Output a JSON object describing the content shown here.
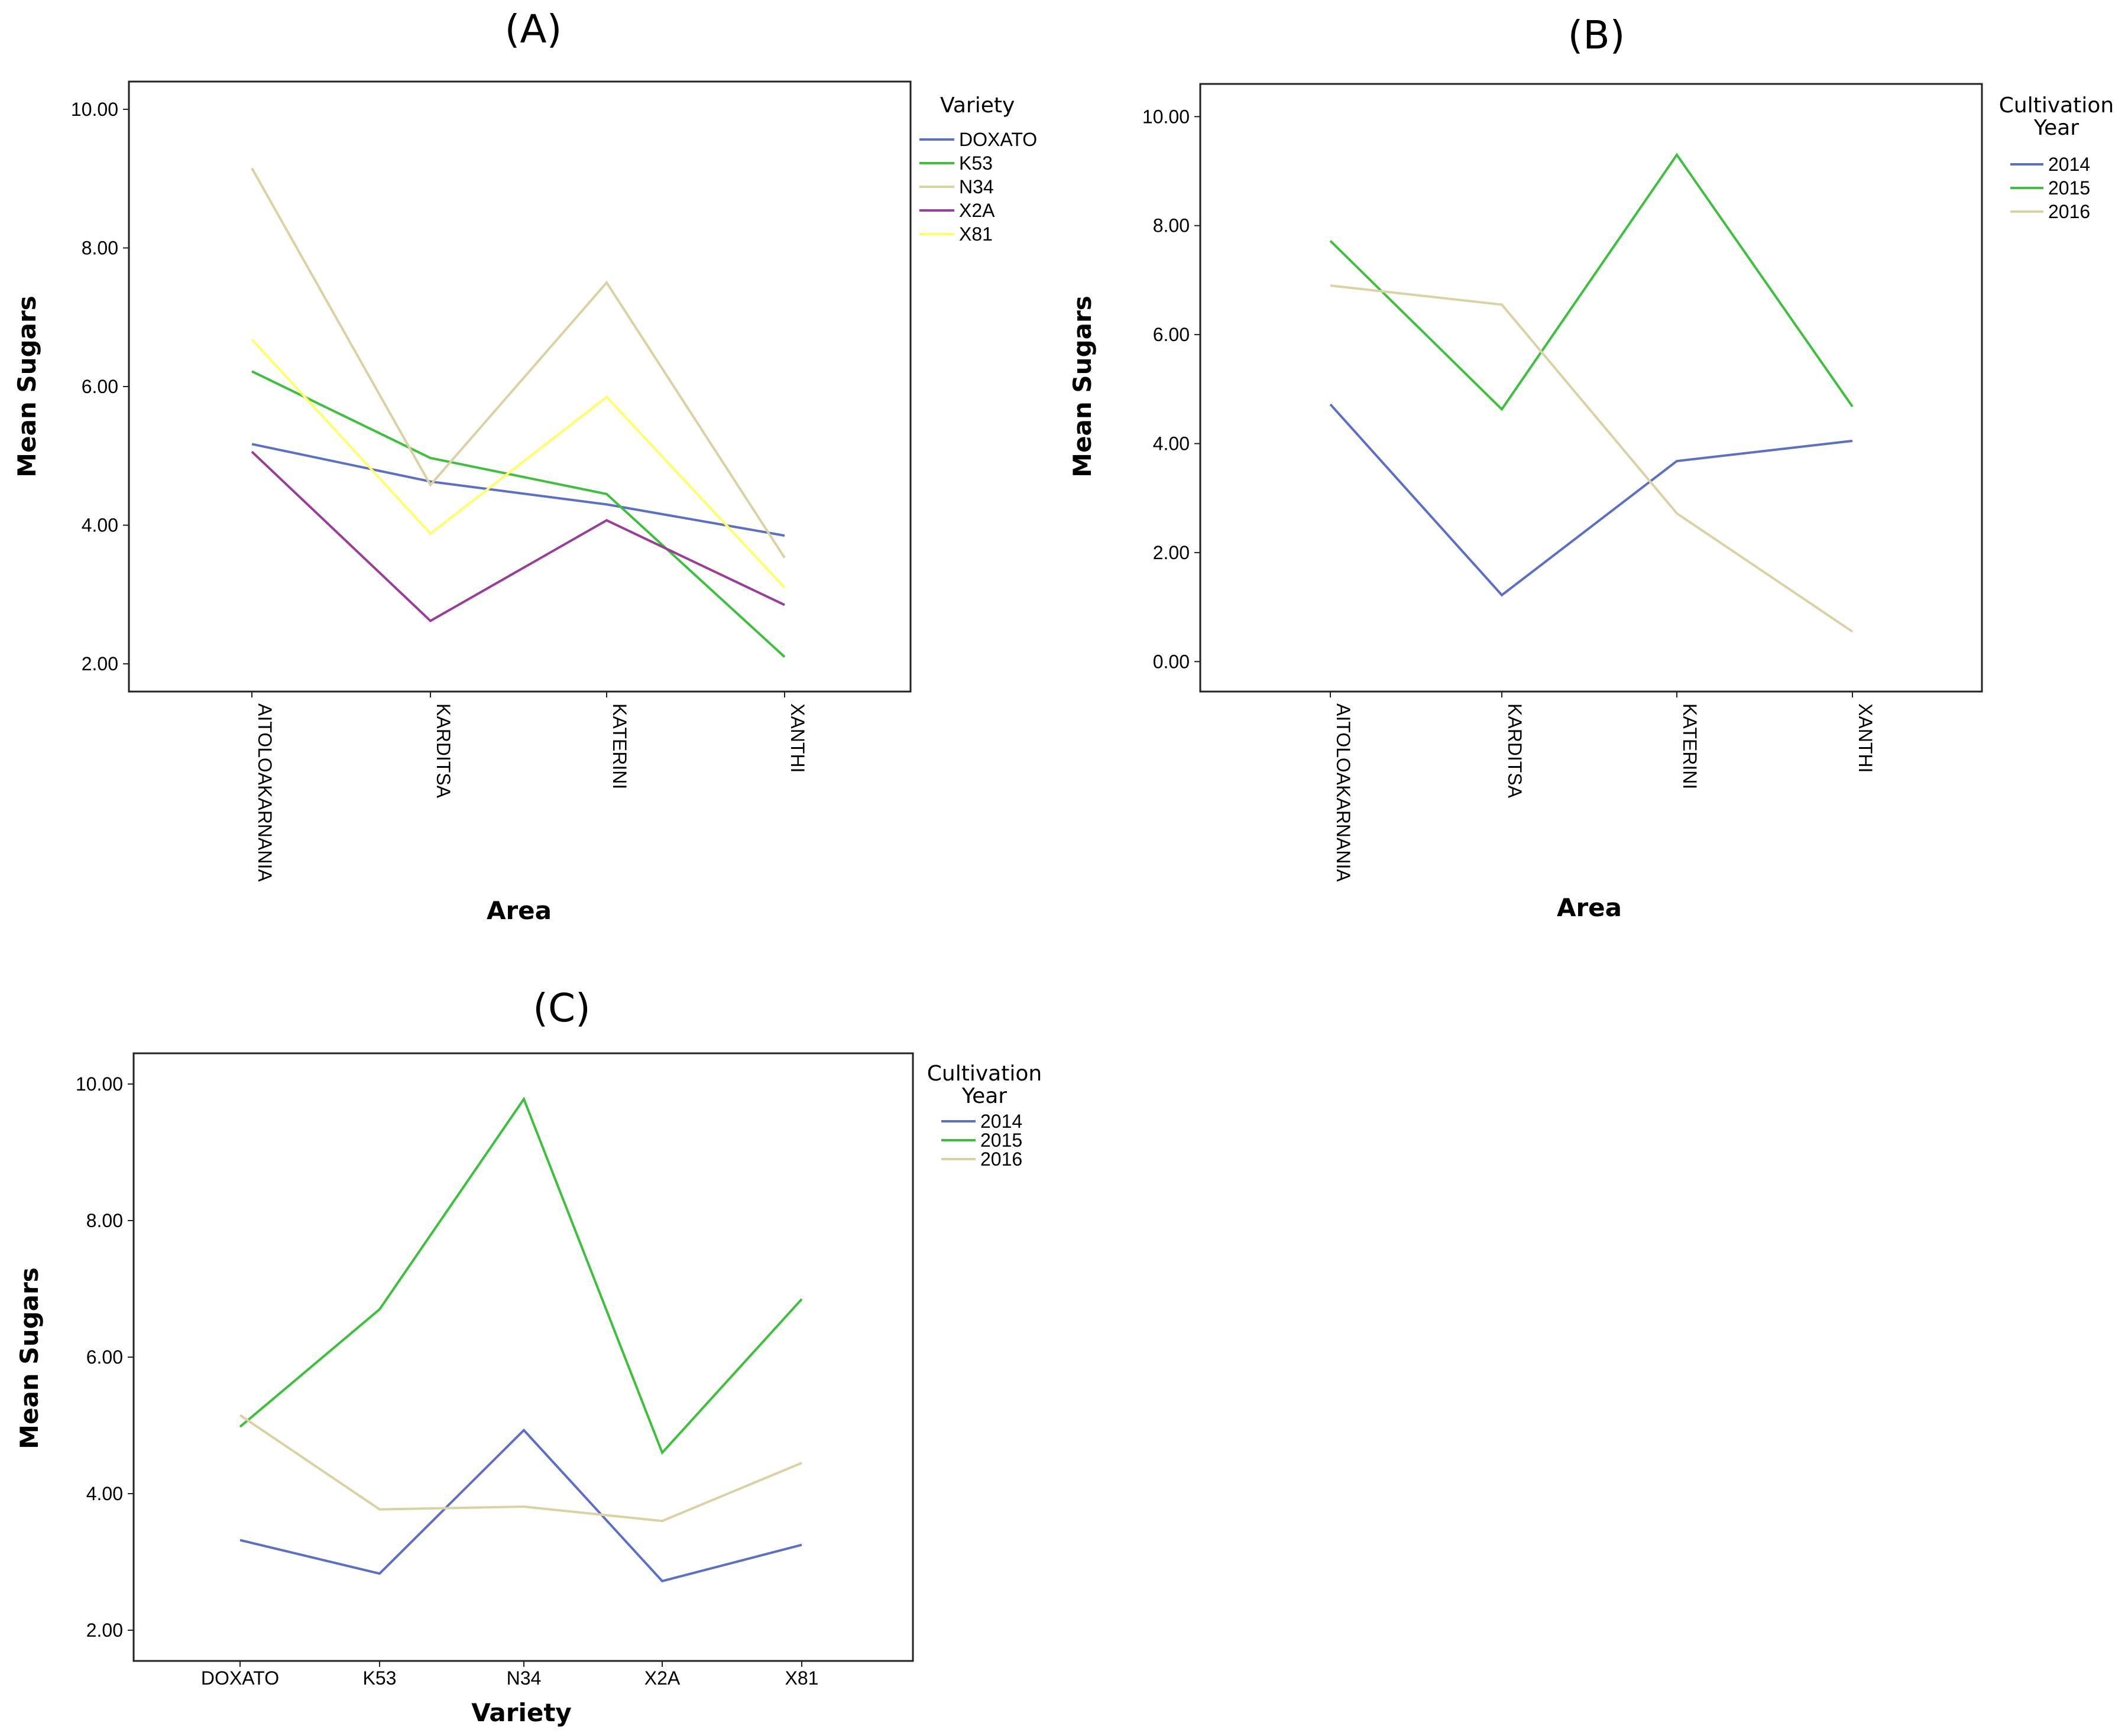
{
  "colors": {
    "DOXATO": "#5b6fc8",
    "K53": "#3cc13c",
    "N34": "#d9d2a3",
    "X2A": "#993d99",
    "X81": "#ffff66",
    "2014": "#5b6fc8",
    "2015": "#3cc13c",
    "2016": "#d9d2a3"
  },
  "chart_data": [
    {
      "type": "line",
      "title": "(A)",
      "xlabel": "Area",
      "ylabel": "Mean Sugars",
      "categories": [
        "AITOLOAKARNANIA",
        "KARDITSA",
        "KATERINI",
        "XANTHI"
      ],
      "ylim": [
        1.6,
        10.4
      ],
      "yticks": [
        "2.00",
        "4.00",
        "6.00",
        "8.00",
        "10.00"
      ],
      "legend_title": [
        "Variety"
      ],
      "legend_position": "right",
      "series": [
        {
          "name": "DOXATO",
          "legend_label": "DOXATO",
          "values": [
            5.17,
            4.63,
            4.3,
            3.85
          ]
        },
        {
          "name": "K53",
          "legend_label": "K53",
          "values": [
            6.22,
            4.97,
            4.45,
            2.1
          ]
        },
        {
          "name": "N34",
          "legend_label": "N34",
          "values": [
            9.15,
            4.58,
            7.5,
            3.53
          ]
        },
        {
          "name": "X2A",
          "legend_label": "X2A",
          "values": [
            5.06,
            2.62,
            4.07,
            2.85
          ]
        },
        {
          "name": "X81",
          "legend_label": "X81",
          "values": [
            6.68,
            3.88,
            5.85,
            3.1
          ]
        }
      ]
    },
    {
      "type": "line",
      "title": "(B)",
      "xlabel": "Area",
      "ylabel": "Mean Sugars",
      "categories": [
        "AITOLOAKARNANIA",
        "KARDITSA",
        "KATERINI",
        "XANTHI"
      ],
      "ylim": [
        -0.55,
        10.6
      ],
      "yticks": [
        "0.00",
        "2.00",
        "4.00",
        "6.00",
        "8.00",
        "10.00"
      ],
      "legend_title": [
        "Cultivation",
        "Year"
      ],
      "legend_position": "right",
      "series": [
        {
          "name": "2014",
          "legend_label": "2014",
          "values": [
            4.72,
            1.22,
            3.68,
            4.05
          ]
        },
        {
          "name": "2015",
          "legend_label": "2015",
          "values": [
            7.72,
            4.63,
            9.3,
            4.68
          ]
        },
        {
          "name": "2016",
          "legend_label": "2016",
          "values": [
            6.9,
            6.55,
            2.72,
            0.55
          ]
        }
      ]
    },
    {
      "type": "line",
      "title": "(C)",
      "xlabel": "Variety",
      "ylabel": "Mean Sugars",
      "categories": [
        "DOXATO",
        "K53",
        "N34",
        "X2A",
        "X81"
      ],
      "ylim": [
        1.55,
        10.45
      ],
      "yticks": [
        "2.00",
        "4.00",
        "6.00",
        "8.00",
        "10.00"
      ],
      "legend_title": [
        "Cultivation",
        "Year"
      ],
      "legend_position": "right",
      "series": [
        {
          "name": "2014",
          "legend_label": "2014",
          "values": [
            3.32,
            2.83,
            4.93,
            2.72,
            3.25
          ]
        },
        {
          "name": "2015",
          "legend_label": "2015",
          "values": [
            4.98,
            6.7,
            9.78,
            4.6,
            6.85
          ]
        },
        {
          "name": "2016",
          "legend_label": "2016",
          "values": [
            5.15,
            3.77,
            3.81,
            3.6,
            4.45
          ]
        }
      ]
    }
  ]
}
